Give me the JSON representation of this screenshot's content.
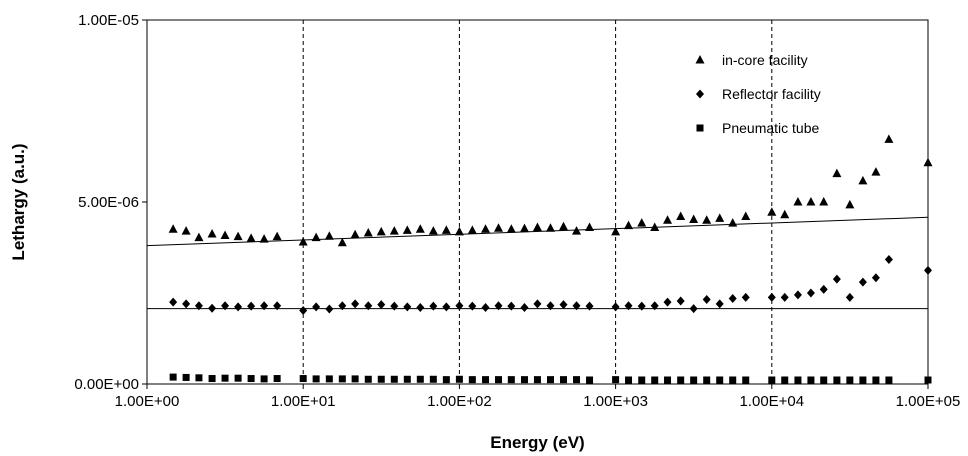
{
  "chart_data": {
    "type": "scatter",
    "xscale": "log",
    "xlim": [
      1,
      100000
    ],
    "ylim": [
      0,
      1e-05
    ],
    "xlabel": "Energy (eV)",
    "ylabel": "Lethargy (a.u.)",
    "xticks": [
      {
        "value": 1,
        "label": "1.00E+00"
      },
      {
        "value": 10,
        "label": "1.00E+01"
      },
      {
        "value": 100,
        "label": "1.00E+02"
      },
      {
        "value": 1000,
        "label": "1.00E+03"
      },
      {
        "value": 10000,
        "label": "1.00E+04"
      },
      {
        "value": 100000,
        "label": "1.00E+05"
      }
    ],
    "yticks": [
      {
        "value": 0,
        "label": "0.00E+00"
      },
      {
        "value": 5e-06,
        "label": "5.00E-06"
      },
      {
        "value": 1e-05,
        "label": "1.00E-05"
      }
    ],
    "grid": "vertical dashed at x ticks",
    "legend_position": "top-right",
    "series": [
      {
        "name": "in-core facility",
        "marker": "triangle",
        "color": "#000000",
        "points": [
          [
            1.47,
            4.25e-06
          ],
          [
            1.78,
            4.2e-06
          ],
          [
            2.15,
            4.02e-06
          ],
          [
            2.61,
            4.12e-06
          ],
          [
            3.16,
            4.08e-06
          ],
          [
            3.83,
            4.05e-06
          ],
          [
            4.64,
            4e-06
          ],
          [
            5.62,
            3.98e-06
          ],
          [
            6.81,
            4.05e-06
          ],
          [
            10.0,
            3.9e-06
          ],
          [
            12.1,
            4.02e-06
          ],
          [
            14.7,
            4.06e-06
          ],
          [
            17.8,
            3.88e-06
          ],
          [
            21.5,
            4.1e-06
          ],
          [
            26.1,
            4.15e-06
          ],
          [
            31.6,
            4.18e-06
          ],
          [
            38.3,
            4.2e-06
          ],
          [
            46.4,
            4.22e-06
          ],
          [
            56.2,
            4.25e-06
          ],
          [
            68.1,
            4.2e-06
          ],
          [
            82.5,
            4.22e-06
          ],
          [
            100,
            4.18e-06
          ],
          [
            121,
            4.22e-06
          ],
          [
            147,
            4.25e-06
          ],
          [
            178,
            4.28e-06
          ],
          [
            215,
            4.25e-06
          ],
          [
            261,
            4.27e-06
          ],
          [
            316,
            4.3e-06
          ],
          [
            383,
            4.28e-06
          ],
          [
            464,
            4.32e-06
          ],
          [
            562,
            4.2e-06
          ],
          [
            681,
            4.3e-06
          ],
          [
            1000,
            4.18e-06
          ],
          [
            1210,
            4.35e-06
          ],
          [
            1470,
            4.42e-06
          ],
          [
            1780,
            4.3e-06
          ],
          [
            2150,
            4.5e-06
          ],
          [
            2610,
            4.6e-06
          ],
          [
            3160,
            4.52e-06
          ],
          [
            3830,
            4.5e-06
          ],
          [
            4640,
            4.55e-06
          ],
          [
            5620,
            4.42e-06
          ],
          [
            6810,
            4.6e-06
          ],
          [
            10000,
            4.72e-06
          ],
          [
            12100,
            4.65e-06
          ],
          [
            14700,
            5e-06
          ],
          [
            17800,
            5e-06
          ],
          [
            21500,
            5e-06
          ],
          [
            26100,
            5.78e-06
          ],
          [
            31600,
            4.92e-06
          ],
          [
            38300,
            5.58e-06
          ],
          [
            46400,
            5.82e-06
          ],
          [
            56200,
            6.72e-06
          ],
          [
            100000,
            6.08e-06
          ]
        ]
      },
      {
        "name": "Reflector facility",
        "marker": "diamond",
        "color": "#000000",
        "points": [
          [
            1.47,
            2.25e-06
          ],
          [
            1.78,
            2.2e-06
          ],
          [
            2.15,
            2.15e-06
          ],
          [
            2.61,
            2.08e-06
          ],
          [
            3.16,
            2.15e-06
          ],
          [
            3.83,
            2.12e-06
          ],
          [
            4.64,
            2.14e-06
          ],
          [
            5.62,
            2.15e-06
          ],
          [
            6.81,
            2.15e-06
          ],
          [
            10.0,
            2.02e-06
          ],
          [
            12.1,
            2.12e-06
          ],
          [
            14.7,
            2.06e-06
          ],
          [
            17.8,
            2.15e-06
          ],
          [
            21.5,
            2.2e-06
          ],
          [
            26.1,
            2.15e-06
          ],
          [
            31.6,
            2.18e-06
          ],
          [
            38.3,
            2.14e-06
          ],
          [
            46.4,
            2.12e-06
          ],
          [
            56.2,
            2.1e-06
          ],
          [
            68.1,
            2.14e-06
          ],
          [
            82.5,
            2.12e-06
          ],
          [
            100,
            2.15e-06
          ],
          [
            121,
            2.14e-06
          ],
          [
            147,
            2.1e-06
          ],
          [
            178,
            2.15e-06
          ],
          [
            215,
            2.14e-06
          ],
          [
            261,
            2.1e-06
          ],
          [
            316,
            2.2e-06
          ],
          [
            383,
            2.15e-06
          ],
          [
            464,
            2.18e-06
          ],
          [
            562,
            2.15e-06
          ],
          [
            681,
            2.14e-06
          ],
          [
            1000,
            2.12e-06
          ],
          [
            1210,
            2.15e-06
          ],
          [
            1470,
            2.14e-06
          ],
          [
            1780,
            2.15e-06
          ],
          [
            2150,
            2.25e-06
          ],
          [
            2610,
            2.28e-06
          ],
          [
            3160,
            2.07e-06
          ],
          [
            3830,
            2.32e-06
          ],
          [
            4640,
            2.2e-06
          ],
          [
            5620,
            2.35e-06
          ],
          [
            6810,
            2.38e-06
          ],
          [
            10000,
            2.38e-06
          ],
          [
            12100,
            2.38e-06
          ],
          [
            14700,
            2.45e-06
          ],
          [
            17800,
            2.5e-06
          ],
          [
            21500,
            2.6e-06
          ],
          [
            26100,
            2.88e-06
          ],
          [
            31600,
            2.38e-06
          ],
          [
            38300,
            2.8e-06
          ],
          [
            46400,
            2.92e-06
          ],
          [
            56200,
            3.42e-06
          ],
          [
            100000,
            3.12e-06
          ]
        ]
      },
      {
        "name": "Pneumatic tube",
        "marker": "square",
        "color": "#000000",
        "points": [
          [
            1.47,
            1.9e-07
          ],
          [
            1.78,
            1.8e-07
          ],
          [
            2.15,
            1.7e-07
          ],
          [
            2.61,
            1.5e-07
          ],
          [
            3.16,
            1.6e-07
          ],
          [
            3.83,
            1.6e-07
          ],
          [
            4.64,
            1.5e-07
          ],
          [
            5.62,
            1.4e-07
          ],
          [
            6.81,
            1.5e-07
          ],
          [
            10.0,
            1.5e-07
          ],
          [
            12.1,
            1.4e-07
          ],
          [
            14.7,
            1.4e-07
          ],
          [
            17.8,
            1.4e-07
          ],
          [
            21.5,
            1.4e-07
          ],
          [
            26.1,
            1.3e-07
          ],
          [
            31.6,
            1.3e-07
          ],
          [
            38.3,
            1.3e-07
          ],
          [
            46.4,
            1.3e-07
          ],
          [
            56.2,
            1.3e-07
          ],
          [
            68.1,
            1.3e-07
          ],
          [
            82.5,
            1.2e-07
          ],
          [
            100,
            1.3e-07
          ],
          [
            121,
            1.2e-07
          ],
          [
            147,
            1.2e-07
          ],
          [
            178,
            1.2e-07
          ],
          [
            215,
            1.2e-07
          ],
          [
            261,
            1.2e-07
          ],
          [
            316,
            1.2e-07
          ],
          [
            383,
            1.2e-07
          ],
          [
            464,
            1.2e-07
          ],
          [
            562,
            1.2e-07
          ],
          [
            681,
            1.1e-07
          ],
          [
            1000,
            1.2e-07
          ],
          [
            1210,
            1.1e-07
          ],
          [
            1470,
            1.1e-07
          ],
          [
            1780,
            1.1e-07
          ],
          [
            2150,
            1.1e-07
          ],
          [
            2610,
            1.1e-07
          ],
          [
            3160,
            1.1e-07
          ],
          [
            3830,
            1.1e-07
          ],
          [
            4640,
            1.1e-07
          ],
          [
            5620,
            1.1e-07
          ],
          [
            6810,
            1.1e-07
          ],
          [
            10000,
            1.1e-07
          ],
          [
            12100,
            1.1e-07
          ],
          [
            14700,
            1.1e-07
          ],
          [
            17800,
            1.1e-07
          ],
          [
            21500,
            1.1e-07
          ],
          [
            26100,
            1.1e-07
          ],
          [
            31600,
            1.1e-07
          ],
          [
            38300,
            1.1e-07
          ],
          [
            46400,
            1.1e-07
          ],
          [
            56200,
            1.1e-07
          ],
          [
            100000,
            1.1e-07
          ]
        ]
      }
    ],
    "trendlines": [
      {
        "series": "in-core facility",
        "from": [
          1,
          3.8e-06
        ],
        "to": [
          100000,
          4.58e-06
        ]
      },
      {
        "series": "Reflector facility",
        "from": [
          1,
          2.07e-06
        ],
        "to": [
          100000,
          2.07e-06
        ]
      }
    ]
  }
}
